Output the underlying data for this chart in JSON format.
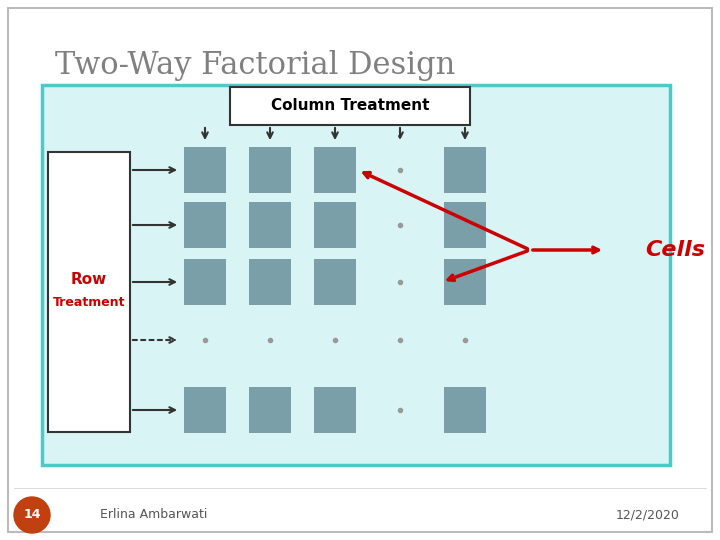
{
  "title": "Two-Way Factorial Design",
  "title_color": "#808080",
  "title_fontsize": 22,
  "bg_color": "#ffffff",
  "main_box_bg": "#d8f4f4",
  "main_box_border": "#50c8c8",
  "cell_color": "#7a9fa8",
  "col_label": "Column Treatment",
  "row_label_1": "Row",
  "row_label_2": "Treatment",
  "row_label_color": "#cc0000",
  "cells_label": "Cells",
  "cells_label_color": "#cc0000",
  "footer_left": "Erlina Ambarwati",
  "footer_right": "12/2/2020",
  "page_num": "14",
  "page_circle_color": "#c04010",
  "arrow_color": "#333333",
  "red_arrow_color": "#cc0000"
}
